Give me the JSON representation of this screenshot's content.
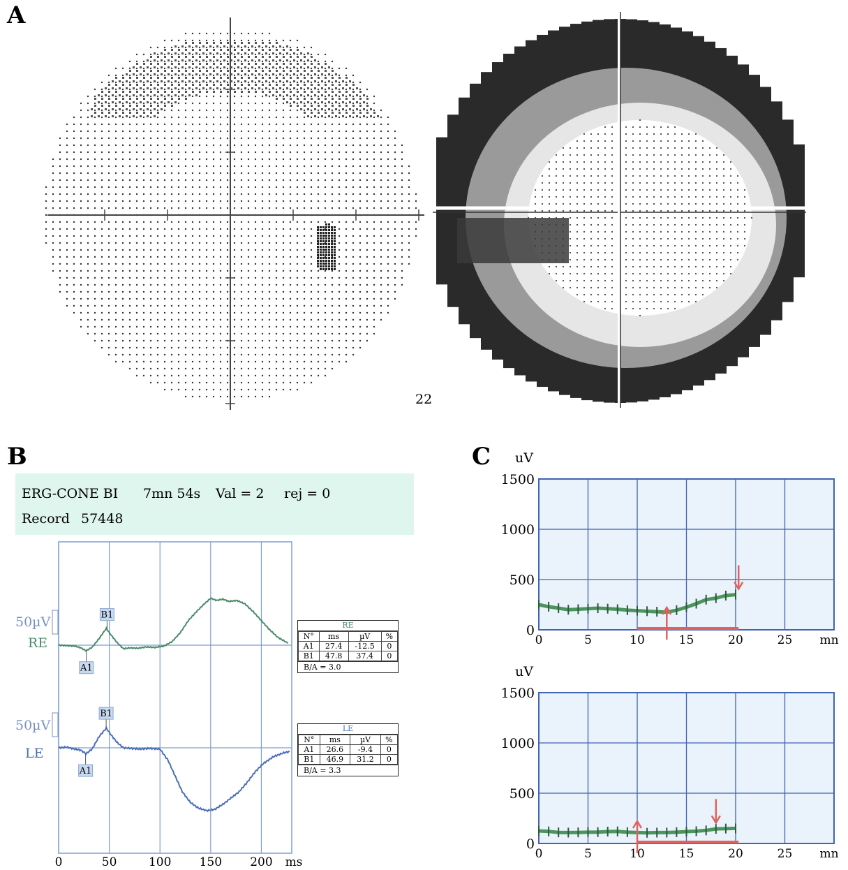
{
  "panels": {
    "a": "A",
    "b": "B",
    "c": "C"
  },
  "visual_field": {
    "left_label": "22"
  },
  "erg": {
    "header": {
      "program": "ERG-CONE BI",
      "duration": "7mn 54s",
      "val": "Val = 2",
      "rej": "rej = 0",
      "record_label": "Record",
      "record_value": "57448"
    },
    "scale_re": "50µV",
    "label_re": "RE",
    "scale_le": "50µV",
    "label_le": "LE",
    "colors": {
      "re": "#4a8a6a",
      "le": "#4a6fb8",
      "grid": "#7b9fd1",
      "marker": "#c8daf0"
    }
  },
  "tables": {
    "re": {
      "title": "RE",
      "headers": [
        "N°",
        "ms",
        "µV",
        "%"
      ],
      "rows": [
        [
          "A1",
          "27.4",
          "-12.5",
          "0"
        ],
        [
          "B1",
          "47.8",
          "37.4",
          "0"
        ]
      ],
      "ratio": "B/A = 3.0"
    },
    "le": {
      "title": "LE",
      "headers": [
        "N°",
        "ms",
        "µV",
        "%"
      ],
      "rows": [
        [
          "A1",
          "26.6",
          "-9.4",
          "0"
        ],
        [
          "B1",
          "46.9",
          "31.2",
          "0"
        ]
      ],
      "ratio": "B/A = 3.3"
    }
  },
  "chart_data": [
    {
      "type": "line",
      "panel": "B",
      "xlabel": "ms",
      "xlim": [
        0,
        230
      ],
      "xticks": [
        0,
        50,
        100,
        150,
        200
      ],
      "series": [
        {
          "name": "RE",
          "color": "#4a8a6a",
          "x": [
            0,
            8,
            16,
            22,
            27,
            33,
            40,
            47,
            52,
            58,
            64,
            70,
            78,
            86,
            95,
            104,
            112,
            120,
            128,
            136,
            144,
            150,
            156,
            162,
            168,
            176,
            184,
            192,
            200,
            208,
            216,
            226
          ],
          "y": [
            0,
            -1,
            -2,
            -6,
            -12.5,
            -5,
            15,
            37.4,
            22,
            5,
            -8,
            -6,
            -7,
            -4,
            -5,
            -2,
            8,
            28,
            55,
            75,
            93,
            105,
            100,
            103,
            98,
            100,
            92,
            75,
            55,
            35,
            18,
            5
          ]
        },
        {
          "name": "LE",
          "color": "#4a6fb8",
          "x": [
            0,
            8,
            16,
            22,
            27,
            33,
            40,
            47,
            52,
            58,
            64,
            72,
            80,
            90,
            100,
            108,
            115,
            122,
            130,
            138,
            146,
            154,
            162,
            170,
            178,
            186,
            194,
            202,
            212,
            222,
            228
          ],
          "y": [
            0,
            1,
            -2,
            -4,
            -9.4,
            -2,
            18,
            31.2,
            20,
            8,
            0,
            -1,
            -2,
            -1,
            -2,
            -20,
            -45,
            -70,
            -87,
            -96,
            -100,
            -98,
            -90,
            -80,
            -70,
            -55,
            -38,
            -25,
            -14,
            -8,
            -6
          ]
        }
      ],
      "markers": [
        {
          "label": "A1",
          "trace": "RE",
          "x": 27.4
        },
        {
          "label": "B1",
          "trace": "RE",
          "x": 47.8
        },
        {
          "label": "A1",
          "trace": "LE",
          "x": 26.6
        },
        {
          "label": "B1",
          "trace": "LE",
          "x": 46.9
        }
      ]
    },
    {
      "type": "line",
      "panel": "C-top",
      "ylabel": "uV",
      "xlabel": "mn",
      "xlim": [
        0,
        30
      ],
      "ylim": [
        0,
        1500
      ],
      "xticks": [
        0,
        5,
        10,
        15,
        20,
        25
      ],
      "yticks": [
        0,
        500,
        1000,
        1500
      ],
      "series": [
        {
          "x": [
            0,
            1,
            2,
            3,
            4,
            5,
            6,
            7,
            8,
            9,
            10,
            11,
            12,
            13,
            14,
            15,
            16,
            17,
            18,
            19,
            20
          ],
          "y": [
            250,
            230,
            215,
            200,
            205,
            210,
            215,
            210,
            205,
            195,
            190,
            185,
            180,
            175,
            195,
            225,
            260,
            300,
            315,
            340,
            350
          ]
        }
      ],
      "bar": {
        "from": 10,
        "to": 20.3
      },
      "up_arrow_x": 13,
      "down_arrow_x": 20.3
    },
    {
      "type": "line",
      "panel": "C-bottom",
      "ylabel": "uV",
      "xlabel": "mn",
      "xlim": [
        0,
        30
      ],
      "ylim": [
        0,
        1500
      ],
      "xticks": [
        0,
        5,
        10,
        15,
        20,
        25
      ],
      "yticks": [
        0,
        500,
        1000,
        1500
      ],
      "series": [
        {
          "x": [
            0,
            1,
            2,
            3,
            4,
            5,
            6,
            7,
            8,
            9,
            10,
            11,
            12,
            13,
            14,
            15,
            16,
            17,
            18,
            19,
            20
          ],
          "y": [
            125,
            120,
            110,
            108,
            110,
            112,
            113,
            118,
            120,
            112,
            108,
            106,
            108,
            108,
            112,
            118,
            122,
            130,
            145,
            148,
            150
          ]
        }
      ],
      "bar": {
        "from": 10,
        "to": 20.3
      },
      "up_arrow_x": 10,
      "down_arrow_x": 18
    }
  ]
}
